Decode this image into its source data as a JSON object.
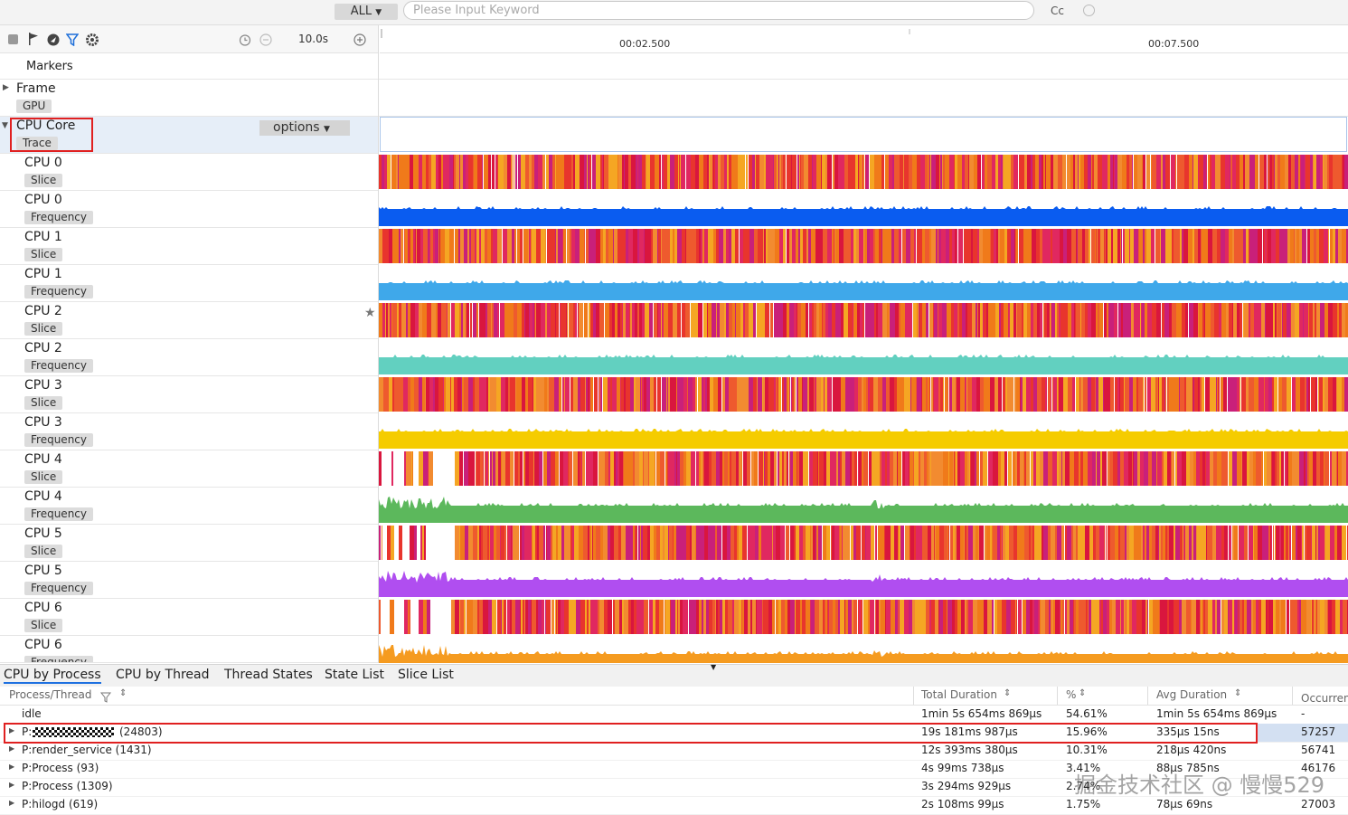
{
  "topbar": {
    "filter_label": "ALL",
    "search_placeholder": "Please Input Keyword",
    "cc_label": "Cc"
  },
  "toolbar": {
    "timescale": "10.0s",
    "ruler_labels": [
      "00:02.500",
      "00:07.500"
    ]
  },
  "tracks": {
    "markers_label": "Markers",
    "frame": {
      "name": "Frame",
      "tag": "GPU"
    },
    "cpu_core": {
      "name": "CPU Core",
      "tag": "Trace",
      "options_label": "options"
    },
    "rows": [
      {
        "name": "CPU 0",
        "tag": "Slice",
        "kind": "slice"
      },
      {
        "name": "CPU 0",
        "tag": "Frequency",
        "kind": "freq",
        "color": "#0a5cf0"
      },
      {
        "name": "CPU 1",
        "tag": "Slice",
        "kind": "slice"
      },
      {
        "name": "CPU 1",
        "tag": "Frequency",
        "kind": "freq",
        "color": "#3fa8ea"
      },
      {
        "name": "CPU 2",
        "tag": "Slice",
        "kind": "slice"
      },
      {
        "name": "CPU 2",
        "tag": "Frequency",
        "kind": "freq",
        "color": "#62d0c0"
      },
      {
        "name": "CPU 3",
        "tag": "Slice",
        "kind": "slice"
      },
      {
        "name": "CPU 3",
        "tag": "Frequency",
        "kind": "freq",
        "color": "#f5cc00"
      },
      {
        "name": "CPU 4",
        "tag": "Slice",
        "kind": "slice"
      },
      {
        "name": "CPU 4",
        "tag": "Frequency",
        "kind": "freq",
        "color": "#5cb85c"
      },
      {
        "name": "CPU 5",
        "tag": "Slice",
        "kind": "slice"
      },
      {
        "name": "CPU 5",
        "tag": "Frequency",
        "kind": "freq",
        "color": "#b04ef0"
      },
      {
        "name": "CPU 6",
        "tag": "Slice",
        "kind": "slice"
      },
      {
        "name": "CPU 6",
        "tag": "Frequency",
        "kind": "freq",
        "color": "#f59b20"
      }
    ]
  },
  "bottom": {
    "tabs": [
      "CPU by Process",
      "CPU by Thread",
      "Thread States",
      "State List",
      "Slice List"
    ],
    "columns": [
      "Process/Thread",
      "Total Duration",
      "%",
      "Avg Duration",
      "Occurrences"
    ],
    "rows": [
      {
        "name": "idle",
        "total": "1min 5s 654ms 869μs",
        "pct": "54.61%",
        "avg": "1min 5s 654ms 869μs",
        "occ": "-"
      },
      {
        "name": "P:",
        "pid": "(24803)",
        "total": "19s 181ms 987μs",
        "pct": "15.96%",
        "avg": "335μs 15ns",
        "occ": "57257"
      },
      {
        "name": "P:render_service (1431)",
        "total": "12s 393ms 380μs",
        "pct": "10.31%",
        "avg": "218μs 420ns",
        "occ": "56741"
      },
      {
        "name": "P:Process (93)",
        "total": "4s 99ms 738μs",
        "pct": "3.41%",
        "avg": "88μs 785ns",
        "occ": "46176"
      },
      {
        "name": "P:Process (1309)",
        "total": "3s 294ms 929μs",
        "pct": "2.74%",
        "avg": "",
        "occ": ""
      },
      {
        "name": "P:hilogd (619)",
        "total": "2s 108ms 99μs",
        "pct": "1.75%",
        "avg": "78μs 69ns",
        "occ": "27003"
      }
    ],
    "watermark": "掘金技术社区 @ 慢慢529"
  }
}
